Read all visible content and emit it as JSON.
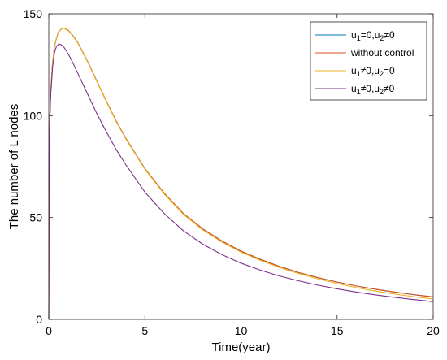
{
  "chart_data": {
    "type": "line",
    "title": "",
    "xlabel": "Time(year)",
    "ylabel": "The number of L nodes",
    "xlim": [
      0,
      20
    ],
    "ylim": [
      0,
      150
    ],
    "xticks": [
      0,
      5,
      10,
      15,
      20
    ],
    "yticks": [
      0,
      50,
      100,
      150
    ],
    "grid": false,
    "legend_position": "top-right",
    "x": [
      0,
      0.02,
      0.05,
      0.1,
      0.2,
      0.3,
      0.4,
      0.5,
      0.6,
      0.7,
      0.8,
      0.9,
      1,
      1.2,
      1.5,
      2,
      2.5,
      3,
      3.5,
      4,
      5,
      6,
      7,
      8,
      9,
      10,
      11,
      12,
      13,
      14,
      15,
      16,
      17,
      18,
      19,
      20
    ],
    "series": [
      {
        "name": "u1=0,u2≠0",
        "legend": {
          "a": "u",
          "a_sub": "1",
          "b": "=0,u",
          "b_sub": "2",
          "c": "≠0"
        },
        "color": "#0072BD",
        "values": [
          0,
          82,
          98,
          112,
          126,
          134,
          138,
          141,
          142,
          143,
          143,
          142.5,
          142,
          140,
          136,
          127,
          117,
          107,
          97.5,
          89,
          74,
          62,
          52,
          44.5,
          38.5,
          33.5,
          29.5,
          26,
          23,
          20.5,
          18.3,
          16.4,
          14.8,
          13.4,
          12.1,
          11
        ]
      },
      {
        "name": "without control",
        "legend": {
          "a": "without control",
          "a_sub": "",
          "b": "",
          "b_sub": "",
          "c": ""
        },
        "color": "#D95319",
        "values": [
          0,
          82,
          98,
          112,
          126,
          134,
          138,
          141,
          142,
          143,
          143,
          142.5,
          142,
          140,
          136,
          127,
          117,
          107,
          97.5,
          89,
          74,
          62,
          52,
          44.5,
          38.5,
          33.5,
          29.5,
          26,
          23,
          20.5,
          18.3,
          16.4,
          14.8,
          13.4,
          12.1,
          11
        ]
      },
      {
        "name": "u1≠0,u2=0",
        "legend": {
          "a": "u",
          "a_sub": "1",
          "b": "≠0,u",
          "b_sub": "2",
          "c": "=0"
        },
        "color": "#EDB120",
        "values": [
          0,
          82,
          98,
          112,
          126,
          134,
          138,
          141,
          142,
          142.8,
          142.8,
          142.3,
          141.8,
          139.8,
          135.8,
          126.8,
          116.8,
          106.8,
          97.2,
          88.7,
          73.7,
          61.6,
          51.6,
          44,
          38,
          33,
          29,
          25.5,
          22.5,
          19.9,
          17.6,
          15.6,
          13.9,
          12.4,
          11.1,
          10
        ]
      },
      {
        "name": "u1≠0,u2≠0",
        "legend": {
          "a": "u",
          "a_sub": "1",
          "b": "≠0,u",
          "b_sub": "2",
          "c": "≠0"
        },
        "color": "#7E2F8E",
        "values": [
          0,
          80,
          96,
          110,
          124,
          131,
          134,
          135,
          135,
          134.5,
          133.5,
          132,
          130.5,
          127,
          121,
          111,
          101,
          92,
          83.5,
          76,
          62.5,
          52,
          43.5,
          37,
          31.8,
          27.6,
          24.2,
          21.3,
          18.9,
          16.8,
          15,
          13.4,
          12,
          10.8,
          9.7,
          8.7
        ]
      }
    ]
  }
}
